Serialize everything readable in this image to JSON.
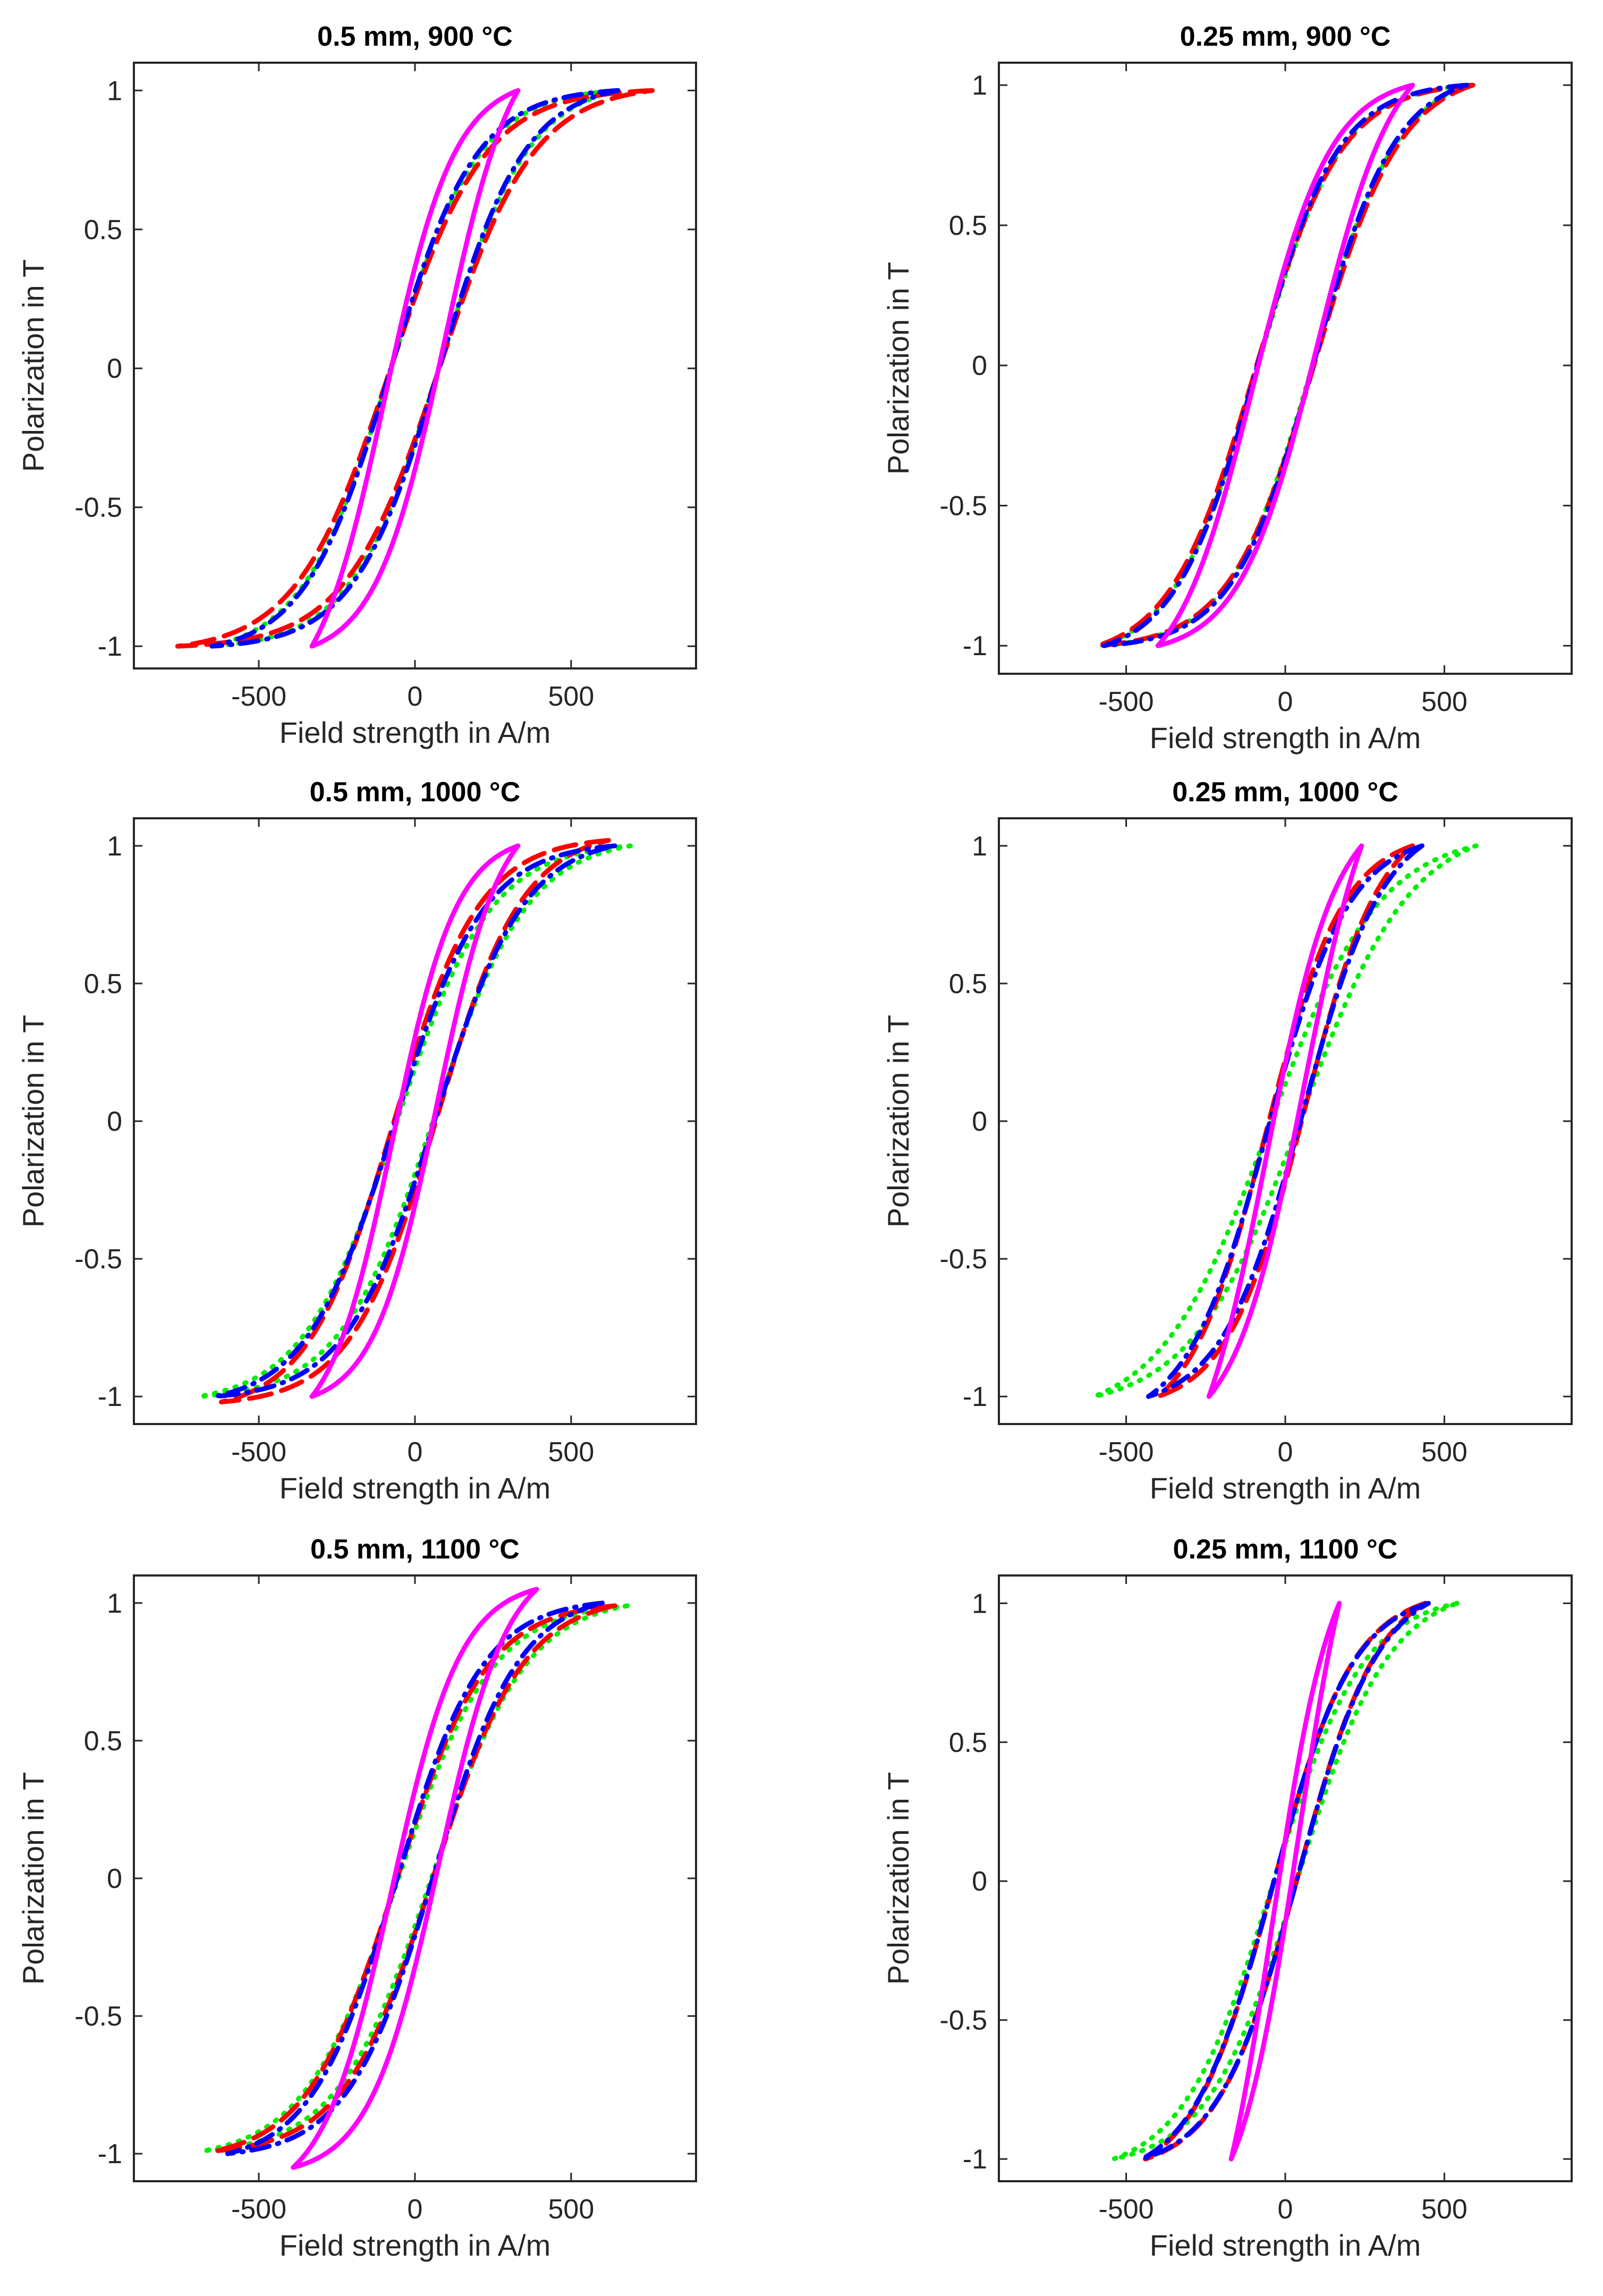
{
  "chart_data": [
    {
      "type": "line",
      "title": "0.5 mm, 900 °C",
      "xlabel": "Field strength in A/m",
      "ylabel": "Polarization in T",
      "xlim": [
        -900,
        900
      ],
      "ylim": [
        -1.08,
        1.1
      ],
      "xticks": [
        -500,
        0,
        500
      ],
      "xtick_labels": [
        "-500",
        "0",
        "500"
      ],
      "yticks": [
        -1,
        -0.5,
        0,
        0.5,
        1
      ],
      "ytick_labels": [
        "-1",
        "-0.5",
        "0",
        "0.5",
        "1"
      ],
      "series": [
        {
          "name": "magenta-solid",
          "color": "#ff00ff",
          "dash": "solid",
          "hmax": 330,
          "jmax": 1.0,
          "hc": 95,
          "k": 1.0
        },
        {
          "name": "green-dotted",
          "color": "#00ee00",
          "dash": "dotted",
          "hmax": 650,
          "jmax": 1.0,
          "hc": 80,
          "k": 0.75
        },
        {
          "name": "blue-dashdot",
          "color": "#0000ff",
          "dash": "dashdot",
          "hmax": 650,
          "jmax": 1.0,
          "hc": 80,
          "k": 0.78
        },
        {
          "name": "red-dashed",
          "color": "#ff0000",
          "dash": "dashed",
          "hmax": 760,
          "jmax": 1.0,
          "hc": 80,
          "k": 0.7
        }
      ]
    },
    {
      "type": "line",
      "title": "0.25 mm, 900 °C",
      "xlabel": "Field strength in A/m",
      "ylabel": "Polarization in T",
      "xlim": [
        -900,
        900
      ],
      "ylim": [
        -1.1,
        1.08
      ],
      "xticks": [
        -500,
        0,
        500
      ],
      "xtick_labels": [
        "-500",
        "0",
        "500"
      ],
      "yticks": [
        -1,
        -0.5,
        0,
        0.5,
        1
      ],
      "ytick_labels": [
        "-1",
        "-0.5",
        "0",
        "0.5",
        "1"
      ],
      "series": [
        {
          "name": "magenta-solid",
          "color": "#ff00ff",
          "dash": "solid",
          "hmax": 400,
          "jmax": 1.0,
          "hc": 100,
          "k": 0.9
        },
        {
          "name": "green-dotted",
          "color": "#00ee00",
          "dash": "dotted",
          "hmax": 580,
          "jmax": 1.0,
          "hc": 90,
          "k": 0.82
        },
        {
          "name": "blue-dashdot",
          "color": "#0000ff",
          "dash": "dashdot",
          "hmax": 570,
          "jmax": 1.0,
          "hc": 92,
          "k": 0.85
        },
        {
          "name": "red-dashed",
          "color": "#ff0000",
          "dash": "dashed",
          "hmax": 590,
          "jmax": 1.0,
          "hc": 95,
          "k": 0.8
        }
      ]
    },
    {
      "type": "line",
      "title": "0.5 mm, 1000 °C",
      "xlabel": "Field strength in A/m",
      "ylabel": "Polarization in T",
      "xlim": [
        -900,
        900
      ],
      "ylim": [
        -1.1,
        1.1
      ],
      "xticks": [
        -500,
        0,
        500
      ],
      "xtick_labels": [
        "-500",
        "0",
        "500"
      ],
      "yticks": [
        -1,
        -0.5,
        0,
        0.5,
        1
      ],
      "ytick_labels": [
        "-1",
        "-0.5",
        "0",
        "0.5",
        "1"
      ],
      "series": [
        {
          "name": "magenta-solid",
          "color": "#ff00ff",
          "dash": "solid",
          "hmax": 330,
          "jmax": 1.0,
          "hc": 70,
          "k": 1.1
        },
        {
          "name": "green-dotted",
          "color": "#00ee00",
          "dash": "dotted",
          "hmax": 690,
          "jmax": 1.0,
          "hc": 60,
          "k": 0.7
        },
        {
          "name": "blue-dashdot",
          "color": "#0000ff",
          "dash": "dashdot",
          "hmax": 640,
          "jmax": 1.0,
          "hc": 65,
          "k": 0.75
        },
        {
          "name": "red-dashed",
          "color": "#ff0000",
          "dash": "dashed",
          "hmax": 620,
          "jmax": 1.02,
          "hc": 70,
          "k": 0.78
        }
      ]
    },
    {
      "type": "line",
      "title": "0.25 mm, 1000 °C",
      "xlabel": "Field strength in A/m",
      "ylabel": "Polarization in T",
      "xlim": [
        -900,
        900
      ],
      "ylim": [
        -1.1,
        1.1
      ],
      "xticks": [
        -500,
        0,
        500
      ],
      "xtick_labels": [
        "-500",
        "0",
        "500"
      ],
      "yticks": [
        -1,
        -0.5,
        0,
        0.5,
        1
      ],
      "ytick_labels": [
        "-1",
        "-0.5",
        "0",
        "0.5",
        "1"
      ],
      "series": [
        {
          "name": "magenta-solid",
          "color": "#ff00ff",
          "dash": "solid",
          "hmax": 240,
          "jmax": 1.0,
          "hc": 60,
          "k": 1.0
        },
        {
          "name": "green-dotted",
          "color": "#00ee00",
          "dash": "dotted",
          "hmax": 600,
          "jmax": 1.0,
          "hc": 50,
          "k": 0.6
        },
        {
          "name": "blue-dashdot",
          "color": "#0000ff",
          "dash": "dashdot",
          "hmax": 430,
          "jmax": 1.0,
          "hc": 55,
          "k": 0.85
        },
        {
          "name": "red-dashed",
          "color": "#ff0000",
          "dash": "dashed",
          "hmax": 400,
          "jmax": 1.0,
          "hc": 60,
          "k": 0.9
        }
      ]
    },
    {
      "type": "line",
      "title": "0.5 mm, 1100 °C",
      "xlabel": "Field strength in A/m",
      "ylabel": "Polarization in T",
      "xlim": [
        -900,
        900
      ],
      "ylim": [
        -1.1,
        1.1
      ],
      "xticks": [
        -500,
        0,
        500
      ],
      "xtick_labels": [
        "-500",
        "0",
        "500"
      ],
      "yticks": [
        -1,
        -0.5,
        0,
        0.5,
        1
      ],
      "ytick_labels": [
        "-1",
        "-0.5",
        "0",
        "0.5",
        "1"
      ],
      "series": [
        {
          "name": "magenta-solid",
          "color": "#ff00ff",
          "dash": "solid",
          "hmax": 390,
          "jmax": 1.05,
          "hc": 75,
          "k": 1.0
        },
        {
          "name": "green-dotted",
          "color": "#00ee00",
          "dash": "dotted",
          "hmax": 680,
          "jmax": 0.99,
          "hc": 55,
          "k": 0.7
        },
        {
          "name": "blue-dashdot",
          "color": "#0000ff",
          "dash": "dashdot",
          "hmax": 600,
          "jmax": 1.0,
          "hc": 60,
          "k": 0.78
        },
        {
          "name": "red-dashed",
          "color": "#ff0000",
          "dash": "dashed",
          "hmax": 640,
          "jmax": 0.99,
          "hc": 60,
          "k": 0.74
        }
      ]
    },
    {
      "type": "line",
      "title": "0.25 mm, 1100 °C",
      "xlabel": "Field strength in A/m",
      "ylabel": "Polarization in T",
      "xlim": [
        -900,
        900
      ],
      "ylim": [
        -1.08,
        1.1
      ],
      "xticks": [
        -500,
        0,
        500
      ],
      "xtick_labels": [
        "-500",
        "0",
        "500"
      ],
      "yticks": [
        -1,
        -0.5,
        0,
        0.5,
        1
      ],
      "ytick_labels": [
        "-1",
        "-0.5",
        "0",
        "0.5",
        "1"
      ],
      "series": [
        {
          "name": "magenta-solid",
          "color": "#ff00ff",
          "dash": "solid",
          "hmax": 170,
          "jmax": 1.0,
          "hc": 40,
          "k": 1.2
        },
        {
          "name": "green-dotted",
          "color": "#00ee00",
          "dash": "dotted",
          "hmax": 540,
          "jmax": 1.0,
          "hc": 40,
          "k": 0.75
        },
        {
          "name": "blue-dashdot",
          "color": "#0000ff",
          "dash": "dashdot",
          "hmax": 450,
          "jmax": 1.0,
          "hc": 40,
          "k": 0.85
        },
        {
          "name": "red-dashed",
          "color": "#ff0000",
          "dash": "dashed",
          "hmax": 440,
          "jmax": 1.0,
          "hc": 40,
          "k": 0.85
        }
      ]
    }
  ]
}
